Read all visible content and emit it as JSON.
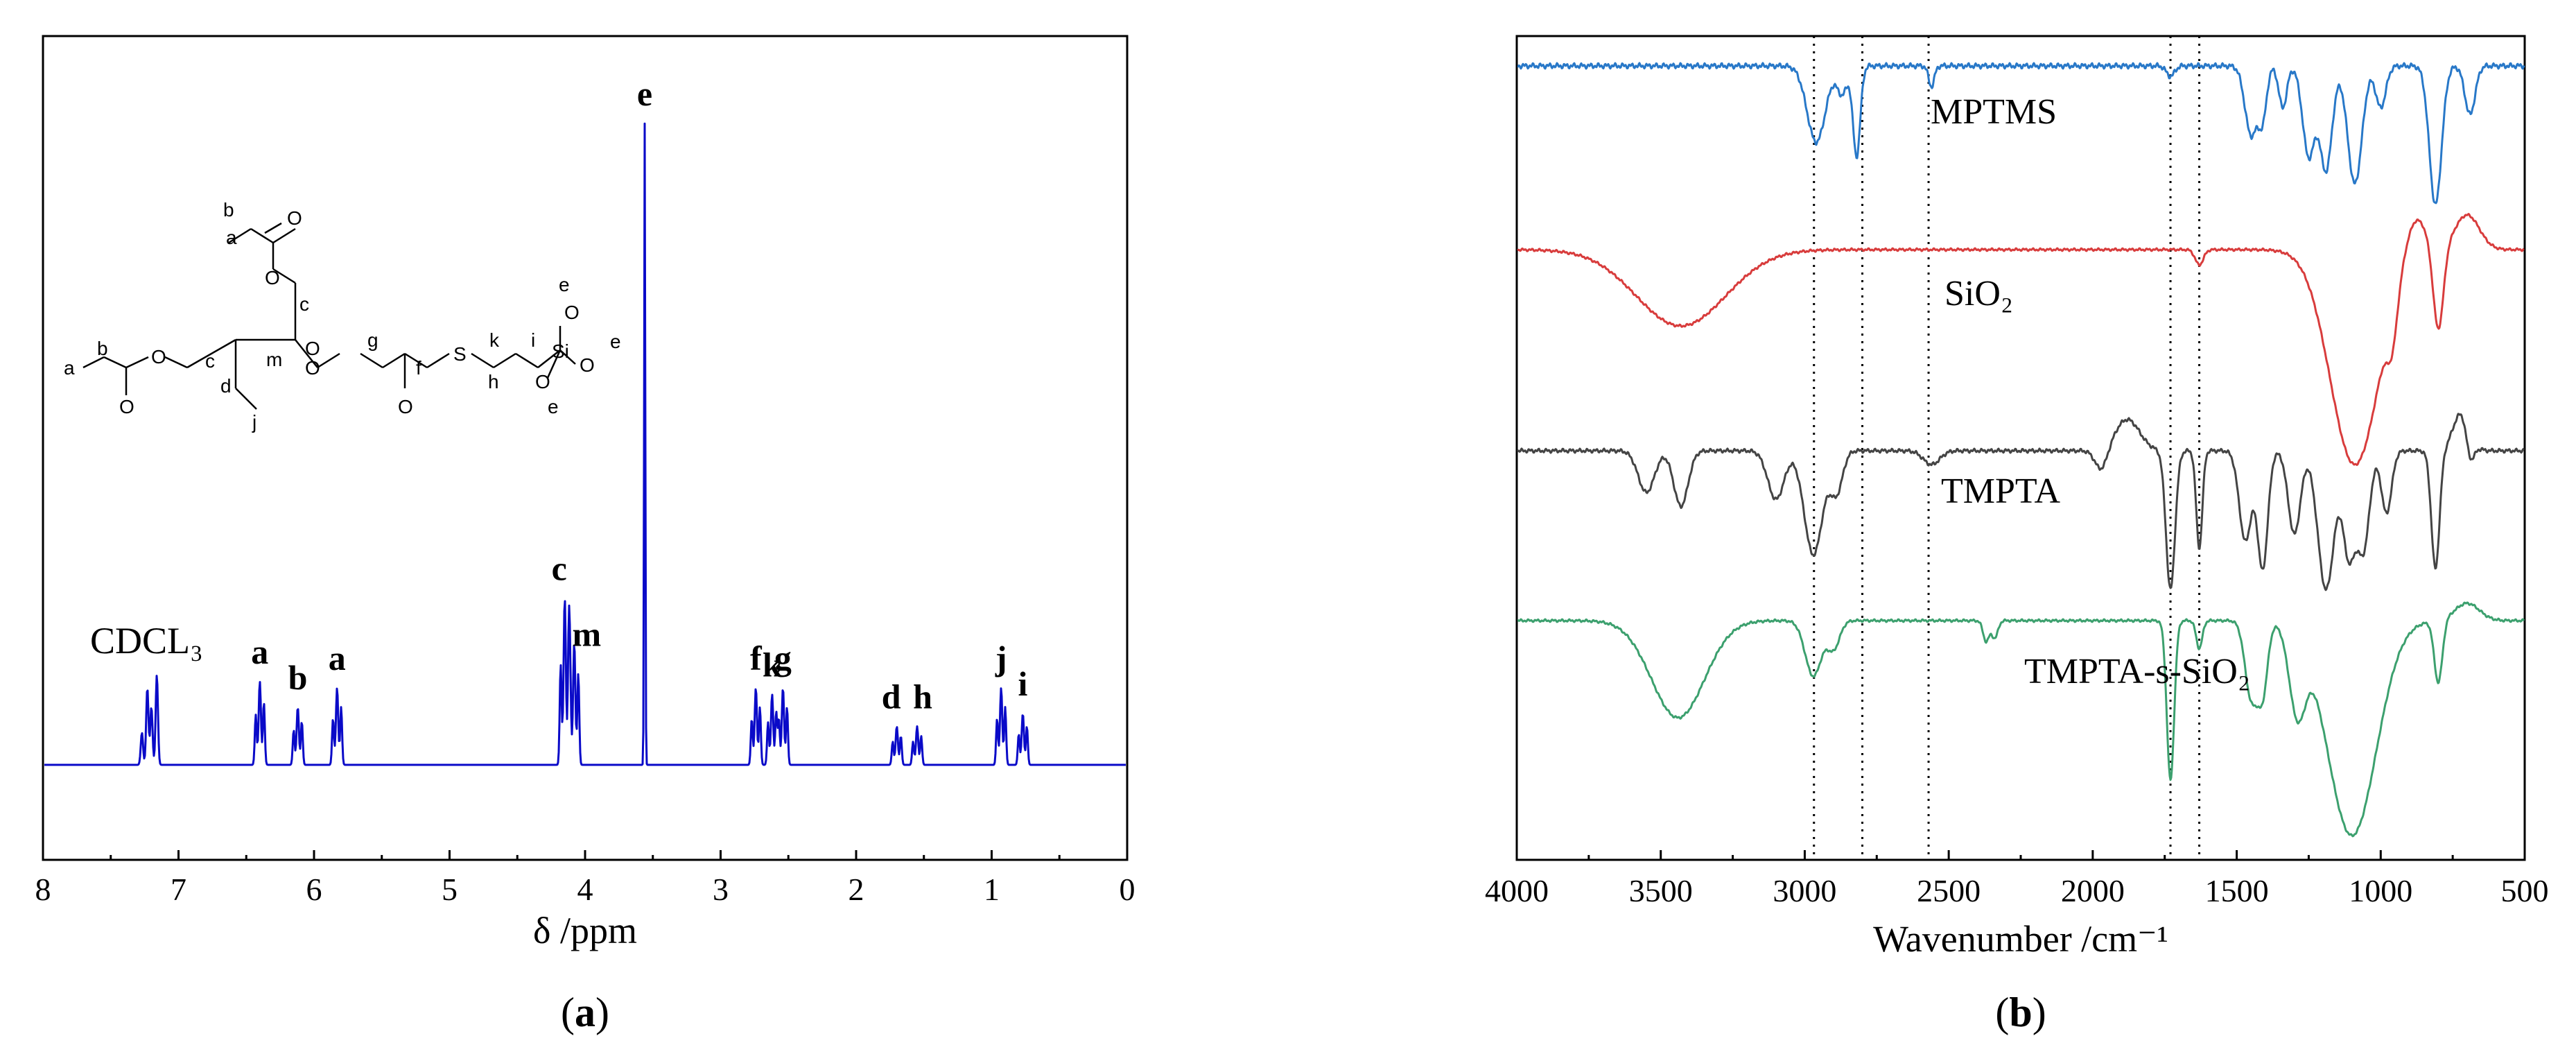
{
  "chart_data": [
    {
      "type": "line",
      "panel_label": "a",
      "xlabel": "δ /ppm",
      "xlim": [
        8,
        0
      ],
      "x_ticks": [
        "8",
        "7",
        "6",
        "5",
        "4",
        "3",
        "2",
        "1",
        "0"
      ],
      "solvent_label": "CDCL₃",
      "line_color": "#0a0ac8",
      "peaks": [
        {
          "label": "a",
          "ppm": 6.4,
          "height": 0.13
        },
        {
          "label": "b",
          "ppm": 6.12,
          "height": 0.09
        },
        {
          "label": "a",
          "ppm": 5.83,
          "height": 0.12
        },
        {
          "label": "c",
          "ppm": 4.15,
          "height": 0.26
        },
        {
          "label": "m",
          "ppm": 4.08,
          "height": 0.19
        },
        {
          "label": "e",
          "ppm": 3.56,
          "height": 1.0
        },
        {
          "label": "f",
          "ppm": 2.74,
          "height": 0.12
        },
        {
          "label": "k",
          "ppm": 2.62,
          "height": 0.11
        },
        {
          "label": "g",
          "ppm": 2.54,
          "height": 0.12
        },
        {
          "label": "d",
          "ppm": 1.7,
          "height": 0.06
        },
        {
          "label": "h",
          "ppm": 1.55,
          "height": 0.06
        },
        {
          "label": "j",
          "ppm": 0.93,
          "height": 0.12
        },
        {
          "label": "i",
          "ppm": 0.77,
          "height": 0.08
        }
      ],
      "molecule_labels": [
        "a",
        "b",
        "O",
        "O",
        "c",
        "O",
        "a",
        "b",
        "O",
        "c",
        "m",
        "O",
        "g",
        "S",
        "k",
        "i",
        "e",
        "O",
        "Si",
        "O",
        "e",
        "O",
        "d",
        "f",
        "h",
        "O",
        "j",
        "O",
        "e"
      ]
    },
    {
      "type": "line",
      "panel_label": "b",
      "xlabel": "Wavenumber /cm⁻¹",
      "xlim": [
        4000,
        500
      ],
      "x_ticks": [
        "4000",
        "3500",
        "3000",
        "2500",
        "2000",
        "1500",
        "1000",
        "500"
      ],
      "reference_lines": [
        2968,
        2800,
        2570,
        1730,
        1630
      ],
      "series": [
        {
          "name": "MPTMS",
          "color": "#2878c8"
        },
        {
          "name": "SiO₂",
          "color": "#d83c3c"
        },
        {
          "name": "TMPTA",
          "color": "#444444"
        },
        {
          "name": "TMPTA-s-SiO₂",
          "color": "#3ca06e"
        }
      ]
    }
  ]
}
